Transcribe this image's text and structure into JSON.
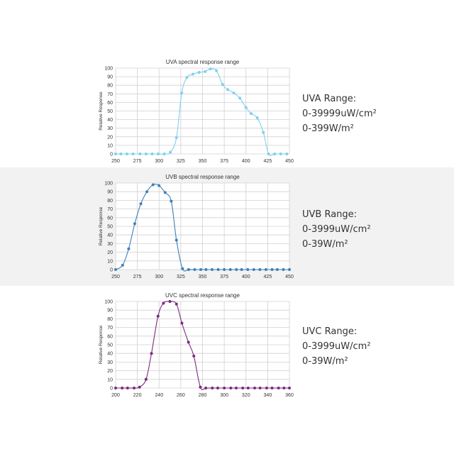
{
  "panels": [
    {
      "id": "uva",
      "range_lines": [
        "UVA Range:",
        "0-39999uW/cm²",
        "0-399W/m²"
      ],
      "chart_data": {
        "type": "line",
        "title": "UVA spectral response range",
        "xlabel": "",
        "ylabel": "Relative Response",
        "xlim": [
          250,
          450
        ],
        "ylim": [
          0,
          100
        ],
        "xticks": [
          250,
          275,
          300,
          325,
          350,
          375,
          400,
          425,
          450
        ],
        "yticks": [
          0,
          10,
          20,
          30,
          40,
          50,
          60,
          70,
          80,
          90,
          100
        ],
        "grid": true,
        "color": "#7fd0ee",
        "series": [
          {
            "x": [
              250,
              256,
              263,
              270,
              278,
              285,
              292,
              299,
              306,
              313,
              320,
              326,
              332,
              339,
              346,
              353,
              359,
              366,
              373,
              379,
              386,
              393,
              400,
              406,
              413,
              420,
              426,
              433,
              440,
              447
            ],
            "y": [
              0,
              0,
              0,
              0,
              0,
              0,
              0,
              0,
              0,
              2,
              19,
              71,
              89,
              93,
              95,
              96,
              99,
              97,
              81,
              75,
              71,
              65,
              54,
              47,
              42,
              25,
              0,
              0,
              0,
              0
            ]
          }
        ]
      }
    },
    {
      "id": "uvb",
      "range_lines": [
        "UVB Range:",
        "0-3999uW/cm²",
        "0-39W/m²"
      ],
      "chart_data": {
        "type": "line",
        "title": "UVB spectral response range",
        "xlabel": "",
        "ylabel": "Relative Response",
        "xlim": [
          250,
          450
        ],
        "ylim": [
          0,
          100
        ],
        "xticks": [
          250,
          275,
          300,
          325,
          350,
          375,
          400,
          425,
          450
        ],
        "yticks": [
          0,
          10,
          20,
          30,
          40,
          50,
          60,
          70,
          80,
          90,
          100
        ],
        "grid": true,
        "color": "#3e7fb8",
        "series": [
          {
            "x": [
              250,
              258,
              265,
              272,
              279,
              286,
              293,
              300,
              307,
              314,
              320,
              327,
              334,
              341,
              348,
              354,
              361,
              368,
              375,
              382,
              389,
              395,
              402,
              409,
              416,
              423,
              430,
              436,
              443,
              450
            ],
            "y": [
              0,
              5,
              24,
              53,
              76,
              90,
              98,
              97,
              89,
              79,
              34,
              1,
              0,
              0,
              0,
              0,
              0,
              0,
              0,
              0,
              0,
              0,
              0,
              0,
              0,
              0,
              0,
              0,
              0,
              0
            ]
          }
        ]
      }
    },
    {
      "id": "uvc",
      "range_lines": [
        "UVC Range:",
        "0-3999uW/cm²",
        "0-39W/m²"
      ],
      "chart_data": {
        "type": "line",
        "title": "UVC spectral response range",
        "xlabel": "",
        "ylabel": "Relative Response",
        "xlim": [
          200,
          360
        ],
        "ylim": [
          0,
          100
        ],
        "xticks": [
          200,
          220,
          240,
          260,
          280,
          300,
          320,
          340,
          360
        ],
        "yticks": [
          0,
          10,
          20,
          30,
          40,
          50,
          60,
          70,
          80,
          90,
          100
        ],
        "grid": true,
        "color": "#7b2a7e",
        "series": [
          {
            "x": [
              200,
              206,
              211,
              217,
              222,
              228,
              233,
              239,
              244,
              250,
              256,
              261,
              267,
              272,
              278,
              283,
              289,
              294,
              300,
              306,
              311,
              317,
              322,
              328,
              333,
              339,
              344,
              350,
              355,
              360
            ],
            "y": [
              0,
              0,
              0,
              0,
              1,
              10,
              40,
              83,
              98,
              100,
              97,
              75,
              53,
              37,
              1,
              0,
              0,
              0,
              0,
              0,
              0,
              0,
              0,
              0,
              0,
              0,
              0,
              0,
              0,
              0
            ]
          }
        ]
      }
    }
  ]
}
